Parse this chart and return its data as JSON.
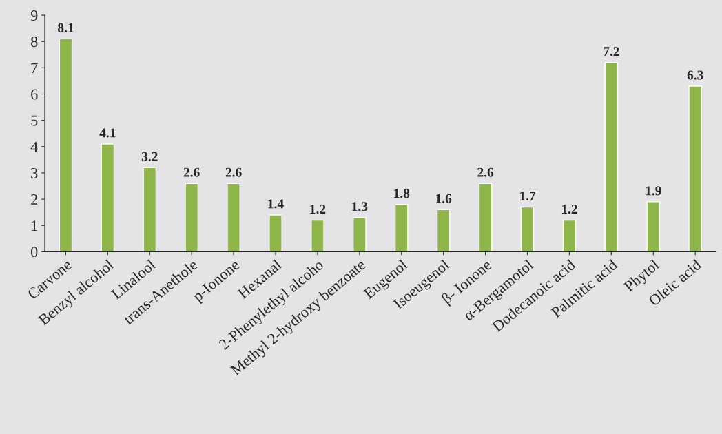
{
  "chart_data": {
    "type": "bar",
    "categories": [
      "Carvone",
      "Benzyl alcohol",
      "Linalool",
      "trans-Anethole",
      "p-Ionone",
      "Hexanal",
      "2-Phenylethyl alcoho",
      "Methyl 2-hydroxy benzoate",
      "Eugenol",
      "Isoeugenol",
      "β- Ionone",
      "α-Bergamotol",
      "Dodecanoic acid",
      "Palmitic acid",
      "Phytol",
      "Oleic acid"
    ],
    "values": [
      8.1,
      4.1,
      3.2,
      2.6,
      2.6,
      1.4,
      1.2,
      1.3,
      1.8,
      1.6,
      2.6,
      1.7,
      1.2,
      7.2,
      1.9,
      6.3
    ],
    "color": "#8db54a",
    "ylim": [
      0,
      9
    ],
    "yticks": [
      0,
      1,
      2,
      3,
      4,
      5,
      6,
      7,
      8,
      9
    ],
    "data_labels": true,
    "grid": false,
    "legend": false
  }
}
